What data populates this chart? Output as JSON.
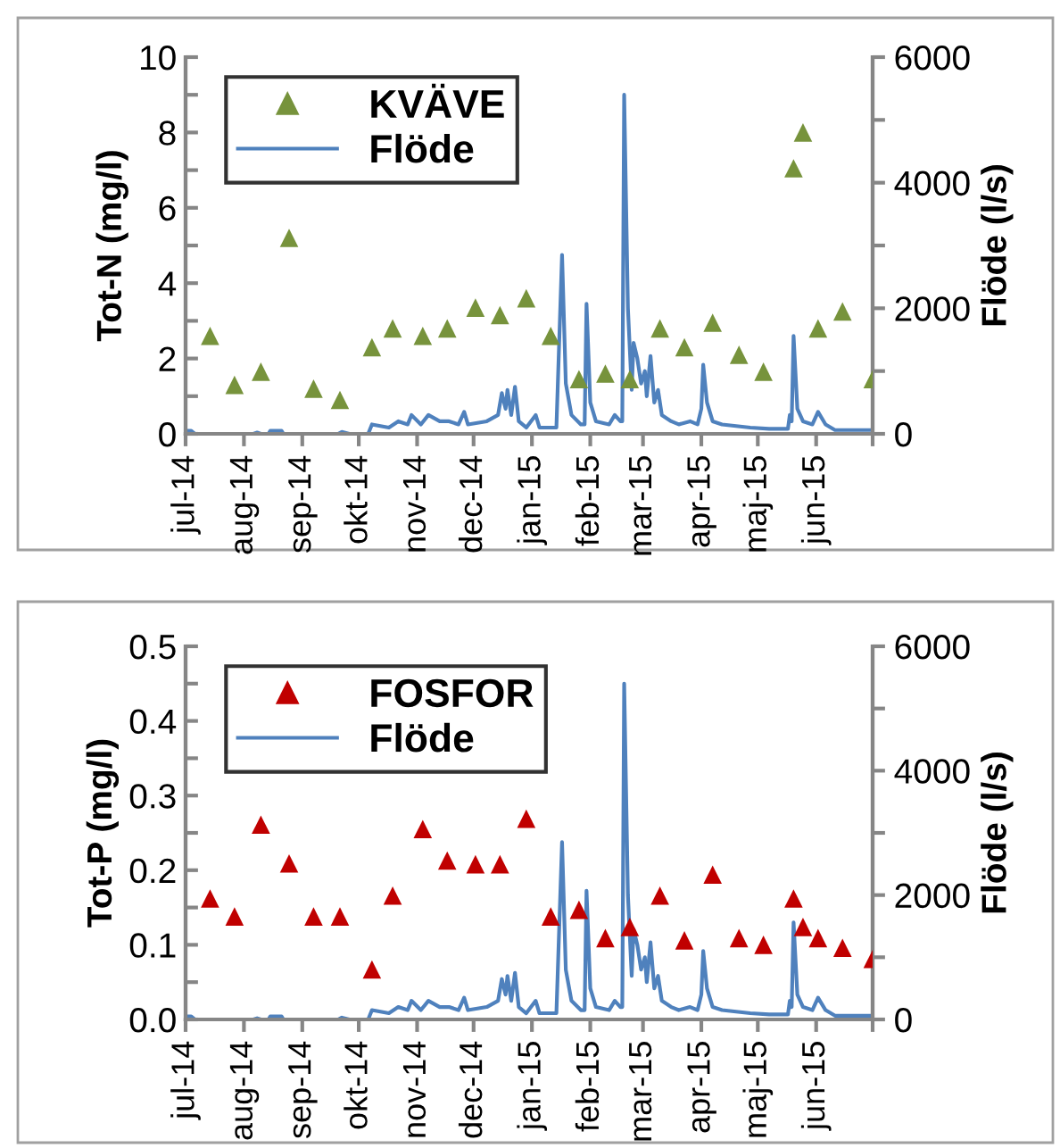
{
  "chart_data": [
    {
      "type": "scatter",
      "ylabel": "Tot-N (mg/l)",
      "y2label": "Flöde (l/s)",
      "legend": "top left",
      "grid": false,
      "marker": "triangle",
      "xlim": [
        "2014-07-01",
        "2015-07-01"
      ],
      "xticks": [
        {
          "value": "2014-07-01",
          "label": "jul-14"
        },
        {
          "value": "2014-08-01",
          "label": "aug-14"
        },
        {
          "value": "2014-09-01",
          "label": "sep-14"
        },
        {
          "value": "2014-10-01",
          "label": "okt-14"
        },
        {
          "value": "2014-11-01",
          "label": "nov-14"
        },
        {
          "value": "2014-12-01",
          "label": "dec-14"
        },
        {
          "value": "2015-01-01",
          "label": "jan-15"
        },
        {
          "value": "2015-02-01",
          "label": "feb-15"
        },
        {
          "value": "2015-03-01",
          "label": "mar-15"
        },
        {
          "value": "2015-04-01",
          "label": "apr-15"
        },
        {
          "value": "2015-05-01",
          "label": "maj-15"
        },
        {
          "value": "2015-06-01",
          "label": "jun-15"
        },
        {
          "value": "2015-07-01",
          "label": null
        }
      ],
      "ylim": [
        0,
        10
      ],
      "yticks": [
        0,
        {
          "value": 1,
          "label": null
        },
        2,
        {
          "value": 3,
          "label": null
        },
        4,
        {
          "value": 5,
          "label": null
        },
        6,
        {
          "value": 7,
          "label": null
        },
        8,
        {
          "value": 9,
          "label": null
        },
        10
      ],
      "y2lim": [
        0,
        6000
      ],
      "y2ticks": [
        0,
        {
          "value": 1000,
          "label": null
        },
        2000,
        {
          "value": 3000,
          "label": null
        },
        4000,
        {
          "value": 5000,
          "label": null
        },
        6000
      ],
      "series": [
        {
          "name": "KVÄVE",
          "color": "#77933c",
          "x": [
            "2014-07-14",
            "2014-07-27",
            "2014-08-10",
            "2014-08-25",
            "2014-09-07",
            "2014-09-21",
            "2014-10-08",
            "2014-10-19",
            "2014-11-04",
            "2014-11-17",
            "2014-12-02",
            "2014-12-15",
            "2014-12-29",
            "2015-01-11",
            "2015-01-26",
            "2015-02-09",
            "2015-02-22",
            "2015-03-10",
            "2015-03-23",
            "2015-04-07",
            "2015-04-21",
            "2015-05-04",
            "2015-05-20",
            "2015-05-25",
            "2015-06-02",
            "2015-06-15",
            "2015-07-01"
          ],
          "values": [
            2.6,
            1.3,
            1.65,
            5.2,
            1.2,
            0.9,
            2.3,
            2.8,
            2.6,
            2.8,
            3.35,
            3.15,
            3.6,
            2.6,
            1.45,
            1.6,
            1.45,
            2.8,
            2.3,
            2.95,
            2.1,
            1.65,
            7.05,
            8.0,
            2.8,
            3.25,
            1.45
          ]
        },
        {
          "name": "Flöde",
          "type": "line",
          "axis": "y2",
          "color": "#4f81bd",
          "marker": "none",
          "line_style": "solid",
          "x": [
            "2014-07-01",
            "2014-07-04",
            "2014-07-06",
            "2014-08-06",
            "2014-08-08",
            "2014-08-10",
            "2014-08-14",
            "2014-08-15",
            "2014-08-21",
            "2014-08-22",
            "2014-09-20",
            "2014-09-22",
            "2014-09-26",
            "2014-10-06",
            "2014-10-08",
            "2014-10-17",
            "2014-10-22",
            "2014-10-27",
            "2014-10-29",
            "2014-11-03",
            "2014-11-07",
            "2014-11-13",
            "2014-11-18",
            "2014-11-23",
            "2014-11-26",
            "2014-11-28",
            "2014-12-08",
            "2014-12-14",
            "2014-12-16",
            "2014-12-18",
            "2014-12-19",
            "2014-12-21",
            "2014-12-23",
            "2014-12-25",
            "2014-12-29",
            "2015-01-03",
            "2015-01-05",
            "2015-01-14",
            "2015-01-17",
            "2015-01-19",
            "2015-01-22",
            "2015-01-27",
            "2015-01-29",
            "2015-01-30",
            "2015-02-01",
            "2015-02-04",
            "2015-02-11",
            "2015-02-14",
            "2015-02-17",
            "2015-02-18",
            "2015-02-19",
            "2015-02-21",
            "2015-02-23",
            "2015-02-24",
            "2015-02-26",
            "2015-02-28",
            "2015-03-02",
            "2015-03-03",
            "2015-03-05",
            "2015-03-07",
            "2015-03-09",
            "2015-03-11",
            "2015-03-16",
            "2015-03-20",
            "2015-03-26",
            "2015-03-30",
            "2015-04-01",
            "2015-04-02",
            "2015-04-04",
            "2015-04-07",
            "2015-04-12",
            "2015-04-27",
            "2015-05-07",
            "2015-05-17",
            "2015-05-18",
            "2015-05-19",
            "2015-05-20",
            "2015-05-22",
            "2015-05-25",
            "2015-05-30",
            "2015-06-02",
            "2015-06-06",
            "2015-06-11",
            "2015-07-01"
          ],
          "values": [
            50,
            50,
            0,
            0,
            20,
            0,
            0,
            50,
            50,
            0,
            0,
            30,
            0,
            0,
            150,
            100,
            200,
            150,
            300,
            150,
            300,
            200,
            200,
            150,
            350,
            150,
            200,
            300,
            650,
            400,
            700,
            300,
            750,
            200,
            100,
            300,
            100,
            100,
            2850,
            800,
            300,
            150,
            150,
            2070,
            500,
            200,
            150,
            300,
            200,
            200,
            5400,
            2000,
            700,
            1450,
            1200,
            800,
            1000,
            600,
            1240,
            500,
            700,
            300,
            200,
            150,
            200,
            150,
            400,
            1100,
            500,
            200,
            150,
            100,
            80,
            80,
            300,
            200,
            1560,
            400,
            200,
            150,
            350,
            150,
            60,
            60
          ]
        }
      ]
    },
    {
      "type": "scatter",
      "ylabel": "Tot-P (mg/l)",
      "y2label": "Flöde (l/s)",
      "legend": "top left",
      "grid": false,
      "marker": "triangle",
      "xlim": [
        "2014-07-01",
        "2015-07-01"
      ],
      "xticks": [
        {
          "value": "2014-07-01",
          "label": "jul-14"
        },
        {
          "value": "2014-08-01",
          "label": "aug-14"
        },
        {
          "value": "2014-09-01",
          "label": "sep-14"
        },
        {
          "value": "2014-10-01",
          "label": "okt-14"
        },
        {
          "value": "2014-11-01",
          "label": "nov-14"
        },
        {
          "value": "2014-12-01",
          "label": "dec-14"
        },
        {
          "value": "2015-01-01",
          "label": "jan-15"
        },
        {
          "value": "2015-02-01",
          "label": "feb-15"
        },
        {
          "value": "2015-03-01",
          "label": "mar-15"
        },
        {
          "value": "2015-04-01",
          "label": "apr-15"
        },
        {
          "value": "2015-05-01",
          "label": "maj-15"
        },
        {
          "value": "2015-06-01",
          "label": "jun-15"
        },
        {
          "value": "2015-07-01",
          "label": null
        }
      ],
      "ylim": [
        0,
        0.5
      ],
      "yticks": [
        {
          "value": 0,
          "label": "0.0"
        },
        {
          "value": 0.05,
          "label": null
        },
        0.1,
        {
          "value": 0.15,
          "label": null
        },
        0.2,
        {
          "value": 0.25,
          "label": null
        },
        0.3,
        {
          "value": 0.35,
          "label": null
        },
        0.4,
        {
          "value": 0.45,
          "label": null
        },
        0.5
      ],
      "y2lim": [
        0,
        6000
      ],
      "y2ticks": [
        0,
        {
          "value": 1000,
          "label": null
        },
        2000,
        {
          "value": 3000,
          "label": null
        },
        4000,
        {
          "value": 5000,
          "label": null
        },
        6000
      ],
      "series": [
        {
          "name": "FOSFOR",
          "color": "#c00000",
          "x": [
            "2014-07-14",
            "2014-07-27",
            "2014-08-10",
            "2014-08-25",
            "2014-09-07",
            "2014-09-21",
            "2014-10-08",
            "2014-10-19",
            "2014-11-04",
            "2014-11-17",
            "2014-12-02",
            "2014-12-15",
            "2014-12-29",
            "2015-01-11",
            "2015-01-26",
            "2015-02-09",
            "2015-02-22",
            "2015-03-10",
            "2015-03-23",
            "2015-04-07",
            "2015-04-21",
            "2015-05-04",
            "2015-05-20",
            "2015-05-25",
            "2015-06-02",
            "2015-06-15",
            "2015-07-01"
          ],
          "values": [
            0.162,
            0.138,
            0.261,
            0.209,
            0.138,
            0.138,
            0.067,
            0.166,
            0.255,
            0.213,
            0.208,
            0.208,
            0.269,
            0.138,
            0.147,
            0.109,
            0.124,
            0.166,
            0.106,
            0.194,
            0.109,
            0.1,
            0.162,
            0.124,
            0.109,
            0.096,
            0.081
          ]
        },
        {
          "name": "Flöde",
          "type": "line",
          "axis": "y2",
          "color": "#4f81bd",
          "marker": "none",
          "line_style": "solid",
          "x": [
            "2014-07-01",
            "2014-07-04",
            "2014-07-06",
            "2014-08-06",
            "2014-08-08",
            "2014-08-10",
            "2014-08-14",
            "2014-08-15",
            "2014-08-21",
            "2014-08-22",
            "2014-09-20",
            "2014-09-22",
            "2014-09-26",
            "2014-10-06",
            "2014-10-08",
            "2014-10-17",
            "2014-10-22",
            "2014-10-27",
            "2014-10-29",
            "2014-11-03",
            "2014-11-07",
            "2014-11-13",
            "2014-11-18",
            "2014-11-23",
            "2014-11-26",
            "2014-11-28",
            "2014-12-08",
            "2014-12-14",
            "2014-12-16",
            "2014-12-18",
            "2014-12-19",
            "2014-12-21",
            "2014-12-23",
            "2014-12-25",
            "2014-12-29",
            "2015-01-03",
            "2015-01-05",
            "2015-01-14",
            "2015-01-17",
            "2015-01-19",
            "2015-01-22",
            "2015-01-27",
            "2015-01-29",
            "2015-01-30",
            "2015-02-01",
            "2015-02-04",
            "2015-02-11",
            "2015-02-14",
            "2015-02-17",
            "2015-02-18",
            "2015-02-19",
            "2015-02-21",
            "2015-02-23",
            "2015-02-24",
            "2015-02-26",
            "2015-02-28",
            "2015-03-02",
            "2015-03-03",
            "2015-03-05",
            "2015-03-07",
            "2015-03-09",
            "2015-03-11",
            "2015-03-16",
            "2015-03-20",
            "2015-03-26",
            "2015-03-30",
            "2015-04-01",
            "2015-04-02",
            "2015-04-04",
            "2015-04-07",
            "2015-04-12",
            "2015-04-27",
            "2015-05-07",
            "2015-05-17",
            "2015-05-18",
            "2015-05-19",
            "2015-05-20",
            "2015-05-22",
            "2015-05-25",
            "2015-05-30",
            "2015-06-02",
            "2015-06-06",
            "2015-06-11",
            "2015-07-01"
          ],
          "values": [
            50,
            50,
            0,
            0,
            20,
            0,
            0,
            50,
            50,
            0,
            0,
            30,
            0,
            0,
            150,
            100,
            200,
            150,
            300,
            150,
            300,
            200,
            200,
            150,
            350,
            150,
            200,
            300,
            650,
            400,
            700,
            300,
            750,
            200,
            100,
            300,
            100,
            100,
            2850,
            800,
            300,
            150,
            150,
            2070,
            500,
            200,
            150,
            300,
            200,
            200,
            5400,
            2000,
            700,
            1450,
            1200,
            800,
            1000,
            600,
            1240,
            500,
            700,
            300,
            200,
            150,
            200,
            150,
            400,
            1100,
            500,
            200,
            150,
            100,
            80,
            80,
            300,
            200,
            1560,
            400,
            200,
            150,
            350,
            150,
            60,
            60
          ]
        }
      ]
    }
  ]
}
